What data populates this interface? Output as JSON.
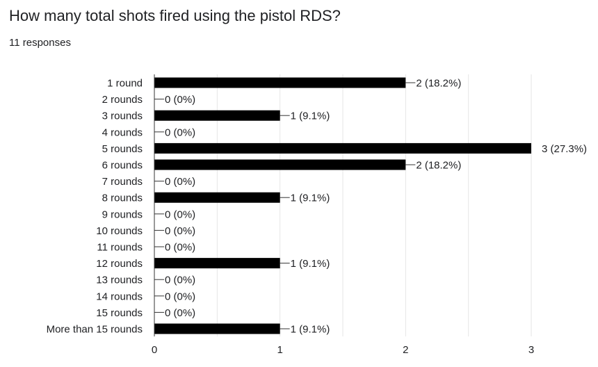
{
  "question": {
    "title": "How many total shots fired using the pistol RDS?",
    "responses": "11 responses"
  },
  "colors": {
    "bar": "#000000",
    "grid": "#e6e6e6",
    "axis": "#333333",
    "text": "#202124"
  },
  "chart_data": {
    "type": "bar",
    "orientation": "horizontal",
    "title": "How many total shots fired using the pistol RDS?",
    "xlim": [
      0,
      3
    ],
    "x_ticks": [
      "0",
      "1",
      "2",
      "3"
    ],
    "grid": true,
    "categories": [
      "1 round",
      "2 rounds",
      "3 rounds",
      "4 rounds",
      "5 rounds",
      "6 rounds",
      "7 rounds",
      "8 rounds",
      "9 rounds",
      "10 rounds",
      "11 rounds",
      "12 rounds",
      "13 rounds",
      "14 rounds",
      "15 rounds",
      "More than 15 rounds"
    ],
    "values": [
      2,
      0,
      1,
      0,
      3,
      2,
      0,
      1,
      0,
      0,
      0,
      1,
      0,
      0,
      0,
      1
    ],
    "data_labels": [
      "2 (18.2%)",
      "0 (0%)",
      "1 (9.1%)",
      "0 (0%)",
      "3 (27.3%)",
      "2 (18.2%)",
      "0 (0%)",
      "1 (9.1%)",
      "0 (0%)",
      "0 (0%)",
      "0 (0%)",
      "1 (9.1%)",
      "0 (0%)",
      "0 (0%)",
      "0 (0%)",
      "1 (9.1%)"
    ]
  }
}
